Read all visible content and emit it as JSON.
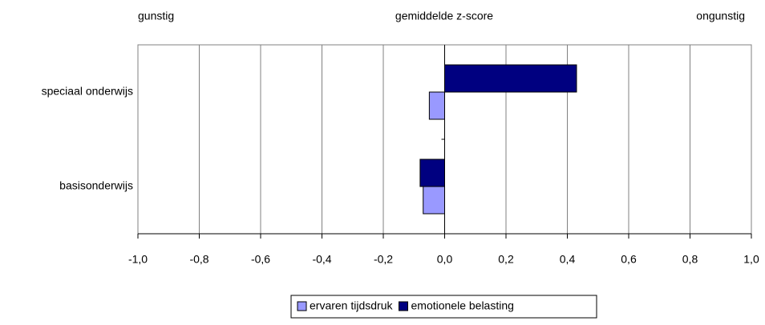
{
  "chart_data": {
    "type": "barh",
    "top_labels": {
      "left": "gunstig",
      "center": "gemiddelde z-score",
      "right": "ongunstig"
    },
    "categories": [
      "speciaal onderwijs",
      "basisonderwijs"
    ],
    "series": [
      {
        "name": "ervaren tijdsdruk",
        "color": "#9999ff",
        "values": [
          -0.05,
          -0.07
        ]
      },
      {
        "name": "emotionele belasting",
        "color": "#000080",
        "values": [
          0.43,
          -0.08
        ]
      }
    ],
    "xlim": [
      -1.0,
      1.0
    ],
    "xticks": [
      {
        "value": -1.0,
        "label": "-1,0"
      },
      {
        "value": -0.8,
        "label": "-0,8"
      },
      {
        "value": -0.6,
        "label": "-0,6"
      },
      {
        "value": -0.4,
        "label": "-0,4"
      },
      {
        "value": -0.2,
        "label": "-0,2"
      },
      {
        "value": 0.0,
        "label": "0,0"
      },
      {
        "value": 0.2,
        "label": "0,2"
      },
      {
        "value": 0.4,
        "label": "0,4"
      },
      {
        "value": 0.6,
        "label": "0,6"
      },
      {
        "value": 0.8,
        "label": "0,8"
      },
      {
        "value": 1.0,
        "label": "1,0"
      }
    ],
    "grid": true,
    "legend": "bottom"
  }
}
